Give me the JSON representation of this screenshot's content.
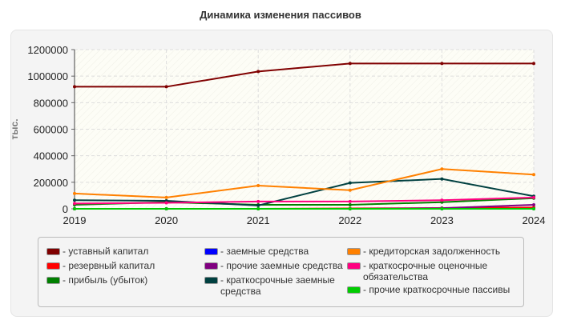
{
  "chart_data": {
    "type": "line",
    "title": "Динамика изменения пассивов",
    "xlabel": "",
    "ylabel": "тыс.",
    "x": [
      "2019",
      "2020",
      "2021",
      "2022",
      "2023",
      "2024"
    ],
    "ylim": [
      0,
      1200000
    ],
    "yticks": [
      "0",
      "200000",
      "400000",
      "600000",
      "800000",
      "1000000",
      "1200000"
    ],
    "grid": true,
    "legend_position": "bottom",
    "series": [
      {
        "name": "- уставный капитал",
        "color": "#800000",
        "values": [
          920000,
          920000,
          1035000,
          1095000,
          1095000,
          1095000
        ]
      },
      {
        "name": "- резервный капитал",
        "color": "#ff0000",
        "values": [
          0,
          0,
          0,
          3000,
          5000,
          10000
        ]
      },
      {
        "name": "- прибыль (убыток)",
        "color": "#008000",
        "values": [
          30000,
          50000,
          30000,
          30000,
          50000,
          80000
        ]
      },
      {
        "name": "- заемные средства",
        "color": "#0000ff",
        "values": [
          0,
          0,
          0,
          0,
          0,
          0
        ]
      },
      {
        "name": "- прочие заемные средства",
        "color": "#800080",
        "values": [
          0,
          0,
          0,
          0,
          5000,
          30000
        ]
      },
      {
        "name": "- краткосрочные заемные средства",
        "color": "#004040",
        "values": [
          65000,
          60000,
          25000,
          195000,
          225000,
          95000
        ]
      },
      {
        "name": "- кредиторская задолженность",
        "color": "#ff8000",
        "values": [
          115000,
          85000,
          175000,
          140000,
          300000,
          258000
        ]
      },
      {
        "name": "- краткосрочные оценочные обязательства",
        "color": "#ff0080",
        "values": [
          40000,
          45000,
          55000,
          55000,
          65000,
          85000
        ]
      },
      {
        "name": "- прочие краткосрочные пассивы",
        "color": "#00cc00",
        "values": [
          0,
          0,
          0,
          0,
          0,
          0
        ]
      }
    ]
  }
}
